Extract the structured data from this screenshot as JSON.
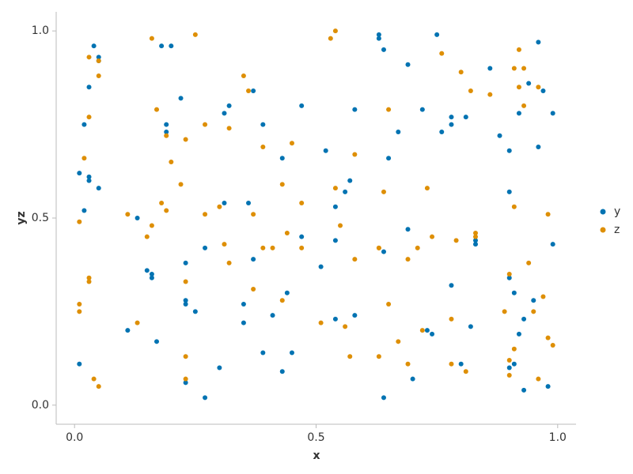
{
  "chart_data": {
    "type": "scatter",
    "x_label": "x",
    "y_label": "yz",
    "xlim": [
      -0.038,
      1.038
    ],
    "ylim": [
      -0.051,
      1.051
    ],
    "xticks": [
      {
        "value": 0,
        "label": "0.0"
      },
      0.5,
      {
        "value": 1,
        "label": "1.0"
      }
    ],
    "yticks": [
      {
        "value": 0,
        "label": "0.0"
      },
      0.5,
      {
        "value": 1,
        "label": "1.0"
      }
    ],
    "legend": "right",
    "series": [
      {
        "name": "y",
        "color": "#0173b2",
        "x": [
          0.04,
          0.05,
          0.05,
          0.03,
          0.02,
          0.03,
          0.03,
          0.01,
          0.05,
          0.02,
          0.01,
          0.18,
          0.2,
          0.22,
          0.19,
          0.19,
          0.32,
          0.31,
          0.37,
          0.39,
          0.43,
          0.47,
          0.52,
          0.58,
          0.57,
          0.56,
          0.54,
          0.54,
          0.51,
          0.47,
          0.44,
          0.63,
          0.63,
          0.64,
          0.75,
          0.69,
          0.72,
          0.67,
          0.65,
          0.78,
          0.78,
          0.76,
          0.81,
          0.86,
          0.92,
          0.94,
          0.88,
          0.9,
          0.96,
          0.97,
          0.99,
          0.96,
          0.64,
          0.69,
          0.78,
          0.7,
          0.73,
          0.74,
          0.58,
          0.54,
          0.64,
          0.8,
          0.82,
          0.83,
          0.83,
          0.9,
          0.9,
          0.91,
          0.91,
          0.9,
          0.92,
          0.93,
          0.93,
          0.95,
          0.98,
          0.99,
          0.13,
          0.11,
          0.15,
          0.16,
          0.16,
          0.17,
          0.23,
          0.23,
          0.23,
          0.25,
          0.23,
          0.27,
          0.27,
          0.3,
          0.31,
          0.35,
          0.35,
          0.36,
          0.37,
          0.39,
          0.41,
          0.43,
          0.45
        ],
        "values": [
          0.96,
          0.93,
          0.92,
          0.85,
          0.75,
          0.61,
          0.6,
          0.62,
          0.58,
          0.52,
          0.11,
          0.96,
          0.96,
          0.82,
          0.75,
          0.73,
          0.8,
          0.78,
          0.84,
          0.75,
          0.66,
          0.8,
          0.68,
          0.79,
          0.6,
          0.57,
          0.53,
          0.44,
          0.37,
          0.45,
          0.3,
          0.99,
          0.98,
          0.95,
          0.99,
          0.91,
          0.79,
          0.73,
          0.66,
          0.75,
          0.77,
          0.73,
          0.77,
          0.9,
          0.78,
          0.86,
          0.72,
          0.68,
          0.69,
          0.84,
          0.78,
          0.97,
          0.41,
          0.47,
          0.32,
          0.07,
          0.2,
          0.19,
          0.24,
          0.23,
          0.02,
          0.11,
          0.21,
          0.44,
          0.43,
          0.57,
          0.34,
          0.3,
          0.11,
          0.1,
          0.19,
          0.23,
          0.04,
          0.28,
          0.05,
          0.43,
          0.5,
          0.2,
          0.36,
          0.35,
          0.34,
          0.17,
          0.38,
          0.28,
          0.27,
          0.25,
          0.06,
          0.42,
          0.02,
          0.1,
          0.54,
          0.27,
          0.22,
          0.54,
          0.39,
          0.14,
          0.24,
          0.09,
          0.14
        ]
      },
      {
        "name": "z",
        "color": "#de8f05",
        "x": [
          0.03,
          0.05,
          0.05,
          0.03,
          0.02,
          0.01,
          0.03,
          0.03,
          0.04,
          0.05,
          0.01,
          0.01,
          0.11,
          0.13,
          0.15,
          0.16,
          0.16,
          0.17,
          0.18,
          0.19,
          0.19,
          0.2,
          0.22,
          0.23,
          0.25,
          0.27,
          0.27,
          0.23,
          0.23,
          0.23,
          0.3,
          0.31,
          0.32,
          0.32,
          0.35,
          0.36,
          0.37,
          0.37,
          0.39,
          0.39,
          0.41,
          0.43,
          0.44,
          0.45,
          0.43,
          0.47,
          0.47,
          0.51,
          0.53,
          0.54,
          0.54,
          0.55,
          0.56,
          0.57,
          0.58,
          0.58,
          0.63,
          0.63,
          0.63,
          0.64,
          0.65,
          0.65,
          0.67,
          0.69,
          0.69,
          0.71,
          0.72,
          0.73,
          0.74,
          0.76,
          0.78,
          0.78,
          0.79,
          0.8,
          0.81,
          0.82,
          0.83,
          0.83,
          0.86,
          0.89,
          0.9,
          0.9,
          0.9,
          0.91,
          0.91,
          0.91,
          0.92,
          0.92,
          0.93,
          0.93,
          0.94,
          0.95,
          0.96,
          0.96,
          0.97,
          0.98,
          0.98,
          0.99
        ],
        "values": [
          0.93,
          0.92,
          0.88,
          0.77,
          0.66,
          0.49,
          0.34,
          0.33,
          0.07,
          0.05,
          0.27,
          0.25,
          0.51,
          0.22,
          0.45,
          0.48,
          0.98,
          0.79,
          0.54,
          0.72,
          0.52,
          0.65,
          0.59,
          0.71,
          0.99,
          0.75,
          0.51,
          0.33,
          0.13,
          0.07,
          0.53,
          0.43,
          0.74,
          0.38,
          0.88,
          0.84,
          0.51,
          0.31,
          0.69,
          0.42,
          0.42,
          0.28,
          0.46,
          0.7,
          0.59,
          0.54,
          0.42,
          0.22,
          0.98,
          1.0,
          0.58,
          0.48,
          0.21,
          0.13,
          0.67,
          0.39,
          0.13,
          0.42,
          0.42,
          0.57,
          0.79,
          0.27,
          0.17,
          0.39,
          0.11,
          0.42,
          0.2,
          0.58,
          0.45,
          0.94,
          0.11,
          0.23,
          0.44,
          0.89,
          0.09,
          0.84,
          0.45,
          0.46,
          0.83,
          0.25,
          0.35,
          0.12,
          0.08,
          0.15,
          0.53,
          0.9,
          0.85,
          0.95,
          0.9,
          0.8,
          0.38,
          0.25,
          0.07,
          0.85,
          0.29,
          0.51,
          0.18,
          0.16
        ]
      }
    ]
  }
}
